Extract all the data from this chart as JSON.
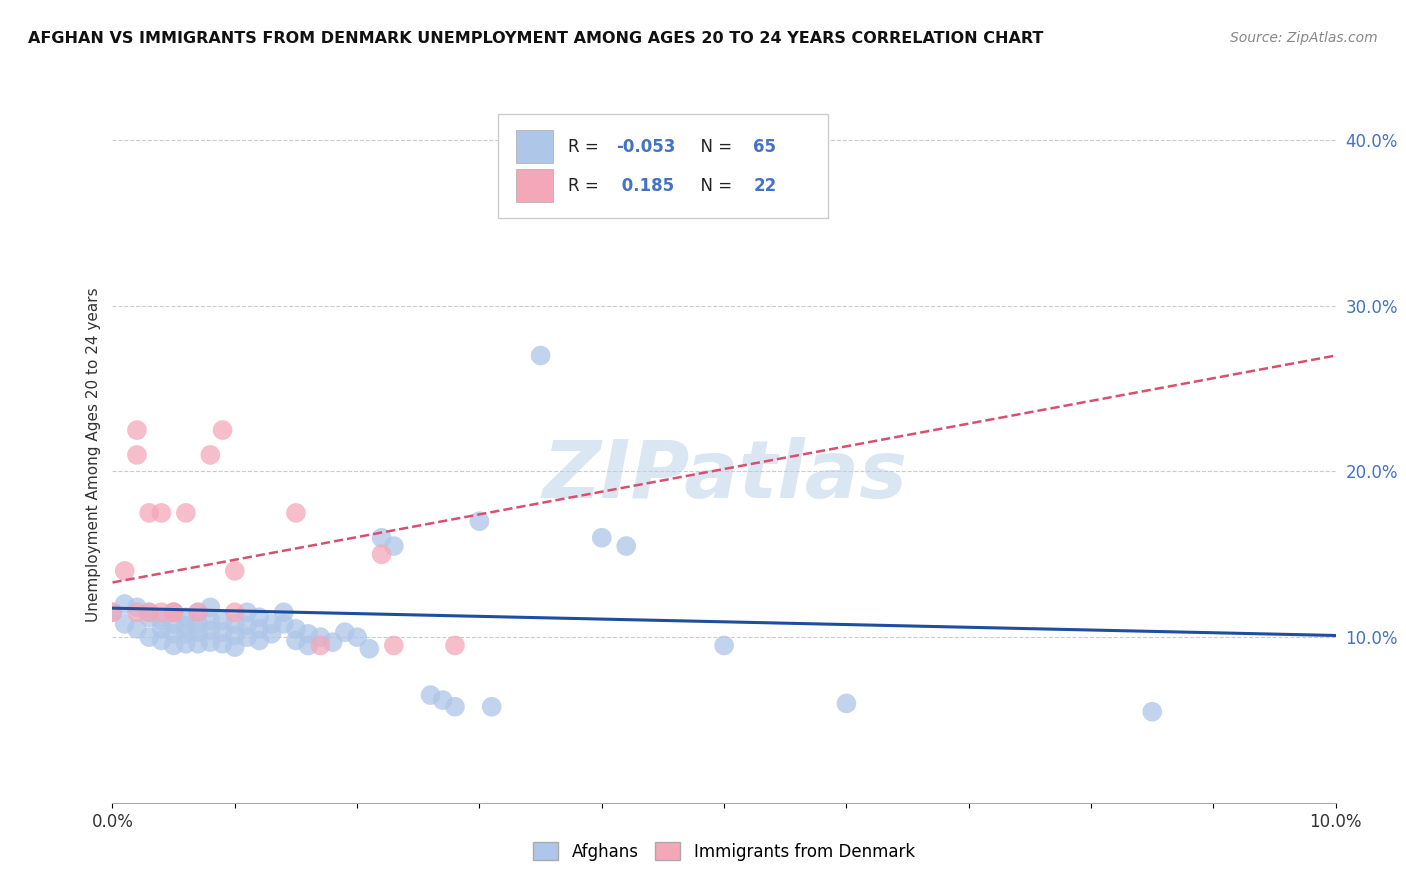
{
  "title": "AFGHAN VS IMMIGRANTS FROM DENMARK UNEMPLOYMENT AMONG AGES 20 TO 24 YEARS CORRELATION CHART",
  "source": "Source: ZipAtlas.com",
  "ylabel": "Unemployment Among Ages 20 to 24 years",
  "xlim": [
    0.0,
    0.1
  ],
  "ylim": [
    0.0,
    0.42
  ],
  "r_afghan": -0.053,
  "n_afghan": 65,
  "r_denmark": 0.185,
  "n_denmark": 22,
  "afghan_color": "#aec6e8",
  "denmark_color": "#f4a7b9",
  "afghan_line_color": "#1f4e9e",
  "denmark_line_color": "#d94f70",
  "watermark": "ZIPatlas",
  "afghan_line": [
    0.1175,
    0.101
  ],
  "denmark_line": [
    0.133,
    0.27
  ],
  "scatter_afghan": [
    [
      0.0,
      0.115
    ],
    [
      0.001,
      0.12
    ],
    [
      0.001,
      0.108
    ],
    [
      0.002,
      0.118
    ],
    [
      0.002,
      0.105
    ],
    [
      0.003,
      0.115
    ],
    [
      0.003,
      0.1
    ],
    [
      0.003,
      0.112
    ],
    [
      0.004,
      0.11
    ],
    [
      0.004,
      0.105
    ],
    [
      0.004,
      0.098
    ],
    [
      0.005,
      0.115
    ],
    [
      0.005,
      0.108
    ],
    [
      0.005,
      0.102
    ],
    [
      0.005,
      0.095
    ],
    [
      0.006,
      0.112
    ],
    [
      0.006,
      0.107
    ],
    [
      0.006,
      0.102
    ],
    [
      0.006,
      0.096
    ],
    [
      0.007,
      0.115
    ],
    [
      0.007,
      0.108
    ],
    [
      0.007,
      0.103
    ],
    [
      0.007,
      0.096
    ],
    [
      0.008,
      0.118
    ],
    [
      0.008,
      0.11
    ],
    [
      0.008,
      0.104
    ],
    [
      0.008,
      0.097
    ],
    [
      0.009,
      0.11
    ],
    [
      0.009,
      0.103
    ],
    [
      0.009,
      0.096
    ],
    [
      0.01,
      0.108
    ],
    [
      0.01,
      0.101
    ],
    [
      0.01,
      0.094
    ],
    [
      0.011,
      0.115
    ],
    [
      0.011,
      0.107
    ],
    [
      0.011,
      0.1
    ],
    [
      0.012,
      0.112
    ],
    [
      0.012,
      0.105
    ],
    [
      0.012,
      0.098
    ],
    [
      0.013,
      0.108
    ],
    [
      0.013,
      0.102
    ],
    [
      0.014,
      0.115
    ],
    [
      0.014,
      0.108
    ],
    [
      0.015,
      0.105
    ],
    [
      0.015,
      0.098
    ],
    [
      0.016,
      0.102
    ],
    [
      0.016,
      0.095
    ],
    [
      0.017,
      0.1
    ],
    [
      0.018,
      0.097
    ],
    [
      0.019,
      0.103
    ],
    [
      0.02,
      0.1
    ],
    [
      0.021,
      0.093
    ],
    [
      0.022,
      0.16
    ],
    [
      0.023,
      0.155
    ],
    [
      0.026,
      0.065
    ],
    [
      0.027,
      0.062
    ],
    [
      0.028,
      0.058
    ],
    [
      0.03,
      0.17
    ],
    [
      0.031,
      0.058
    ],
    [
      0.035,
      0.27
    ],
    [
      0.04,
      0.16
    ],
    [
      0.042,
      0.155
    ],
    [
      0.05,
      0.095
    ],
    [
      0.06,
      0.06
    ],
    [
      0.085,
      0.055
    ]
  ],
  "scatter_denmark": [
    [
      0.0,
      0.115
    ],
    [
      0.001,
      0.14
    ],
    [
      0.002,
      0.115
    ],
    [
      0.002,
      0.21
    ],
    [
      0.002,
      0.225
    ],
    [
      0.003,
      0.115
    ],
    [
      0.003,
      0.175
    ],
    [
      0.004,
      0.175
    ],
    [
      0.004,
      0.115
    ],
    [
      0.005,
      0.115
    ],
    [
      0.005,
      0.115
    ],
    [
      0.006,
      0.175
    ],
    [
      0.007,
      0.115
    ],
    [
      0.008,
      0.21
    ],
    [
      0.009,
      0.225
    ],
    [
      0.01,
      0.14
    ],
    [
      0.01,
      0.115
    ],
    [
      0.015,
      0.175
    ],
    [
      0.017,
      0.095
    ],
    [
      0.022,
      0.15
    ],
    [
      0.023,
      0.095
    ],
    [
      0.028,
      0.095
    ]
  ],
  "grid_color": "#cccccc",
  "bg_color": "#ffffff"
}
